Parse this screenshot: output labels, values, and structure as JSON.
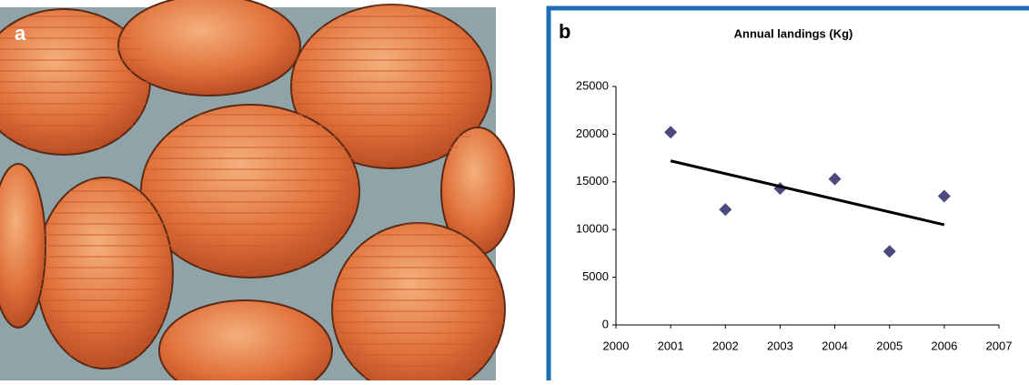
{
  "photo_label": "a",
  "chart_label": "b",
  "chart_data": {
    "type": "scatter",
    "title": "Annual landings (Kg)",
    "x": [
      2001,
      2002,
      2003,
      2004,
      2005,
      2006
    ],
    "values": [
      20200,
      12100,
      14300,
      15300,
      7700,
      13500
    ],
    "color": "#4b4a7e",
    "trendline": {
      "x": [
        2001,
        2006
      ],
      "y": [
        17200,
        10500
      ],
      "color": "#000000"
    },
    "xlim": [
      2000,
      2007
    ],
    "xticks": [
      2000,
      2001,
      2002,
      2003,
      2004,
      2005,
      2006,
      2007
    ],
    "ylim": [
      0,
      25000
    ],
    "yticks": [
      0,
      5000,
      10000,
      15000,
      20000,
      25000
    ],
    "grid": false
  }
}
